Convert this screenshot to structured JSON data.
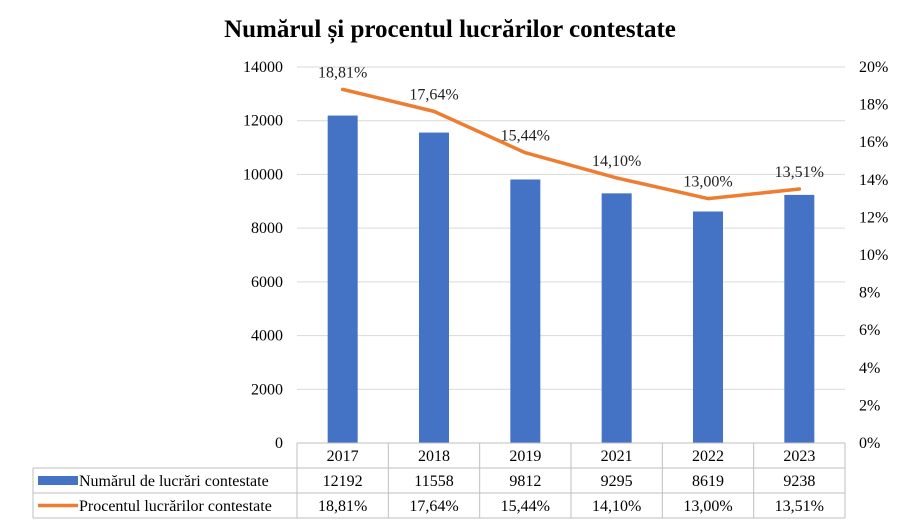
{
  "chart_data": {
    "type": "bar",
    "title": "Numărul și procentul lucrărilor contestate",
    "categories": [
      "2017",
      "2018",
      "2019",
      "2021",
      "2022",
      "2023"
    ],
    "series": [
      {
        "name": "Numărul de lucrări contestate",
        "type": "bar",
        "axis": "left",
        "color": "#4472C4",
        "values": [
          12192,
          11558,
          9812,
          9295,
          8619,
          9238
        ],
        "table_labels": [
          "12192",
          "11558",
          "9812",
          "9295",
          "8619",
          "9238"
        ]
      },
      {
        "name": "Procentul lucrărilor contestate",
        "type": "line",
        "axis": "right",
        "color": "#ED7D31",
        "values": [
          18.81,
          17.64,
          15.44,
          14.1,
          13.0,
          13.51
        ],
        "labels": [
          "18,81%",
          "17,64%",
          "15,44%",
          "14,10%",
          "13,00%",
          "13,51%"
        ]
      }
    ],
    "y_left": {
      "ylim": [
        0,
        14000
      ],
      "ticks": [
        "0",
        "2000",
        "4000",
        "6000",
        "8000",
        "10000",
        "12000",
        "14000"
      ]
    },
    "y_right": {
      "ylim": [
        0,
        20
      ],
      "ticks": [
        "0%",
        "2%",
        "4%",
        "6%",
        "8%",
        "10%",
        "12%",
        "14%",
        "16%",
        "18%",
        "20%"
      ]
    },
    "grid": true,
    "legend": "data-table-below"
  }
}
